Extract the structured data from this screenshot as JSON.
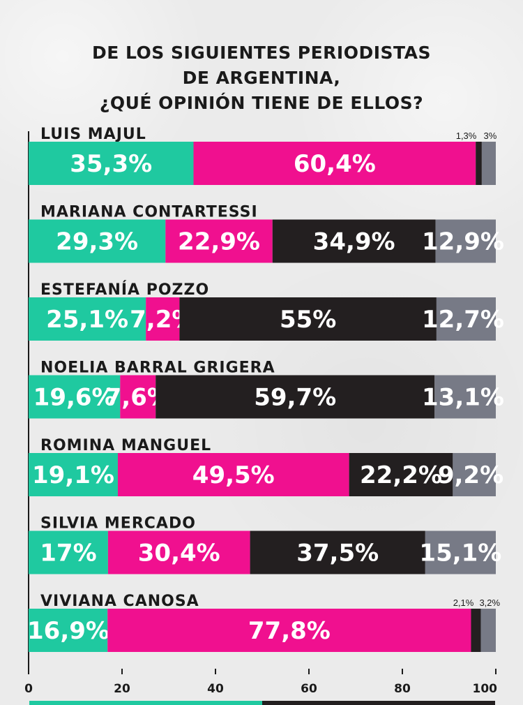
{
  "title_lines": [
    "DE LOS SIGUIENTES PERIODISTAS",
    "DE ARGENTINA,",
    "¿QUÉ OPINIÓN TIENE DE ELLOS?"
  ],
  "chart_data": {
    "type": "bar",
    "orientation": "horizontal",
    "stacked": true,
    "categories": [
      "LUIS MAJUL",
      "MARIANA CONTARTESSI",
      "ESTEFANÍA POZZO",
      "NOELIA BARRAL GRIGERA",
      "ROMINA MANGUEL",
      "SILVIA MERCADO",
      "VIVIANA CANOSA"
    ],
    "series": [
      {
        "values": [
          35.3,
          29.3,
          25.1,
          19.6,
          19.1,
          17,
          16.9
        ],
        "labels": [
          "35,3%",
          "29,3%",
          "25,1%",
          "19,6%",
          "19,1%",
          "17%",
          "16,9%"
        ]
      },
      {
        "values": [
          60.4,
          22.9,
          7.2,
          7.6,
          49.5,
          30.4,
          77.8
        ],
        "labels": [
          "60,4%",
          "22,9%",
          "7,2%",
          "7,6%",
          "49,5%",
          "30,4%",
          "77,8%"
        ]
      },
      {
        "values": [
          1.3,
          34.9,
          55,
          59.7,
          22.2,
          37.5,
          2.1
        ],
        "labels": [
          "1,3%",
          "34,9%",
          "55%",
          "59,7%",
          "22,2%",
          "37,5%",
          "2,1%"
        ]
      },
      {
        "values": [
          3,
          12.9,
          12.7,
          13.1,
          9.2,
          15.1,
          3.2
        ],
        "labels": [
          "3%",
          "12,9%",
          "12,7%",
          "13,1%",
          "9,2%",
          "15,1%",
          "3,2%"
        ]
      }
    ],
    "colors": [
      "#1fc9a0",
      "#f0108f",
      "#231f20",
      "#777a86"
    ],
    "xlim": [
      0,
      100
    ],
    "xticks": [
      "0",
      "20",
      "40",
      "60",
      "80",
      "100"
    ],
    "xlabel": "",
    "ylabel": "",
    "grid": false,
    "legend": "none"
  }
}
